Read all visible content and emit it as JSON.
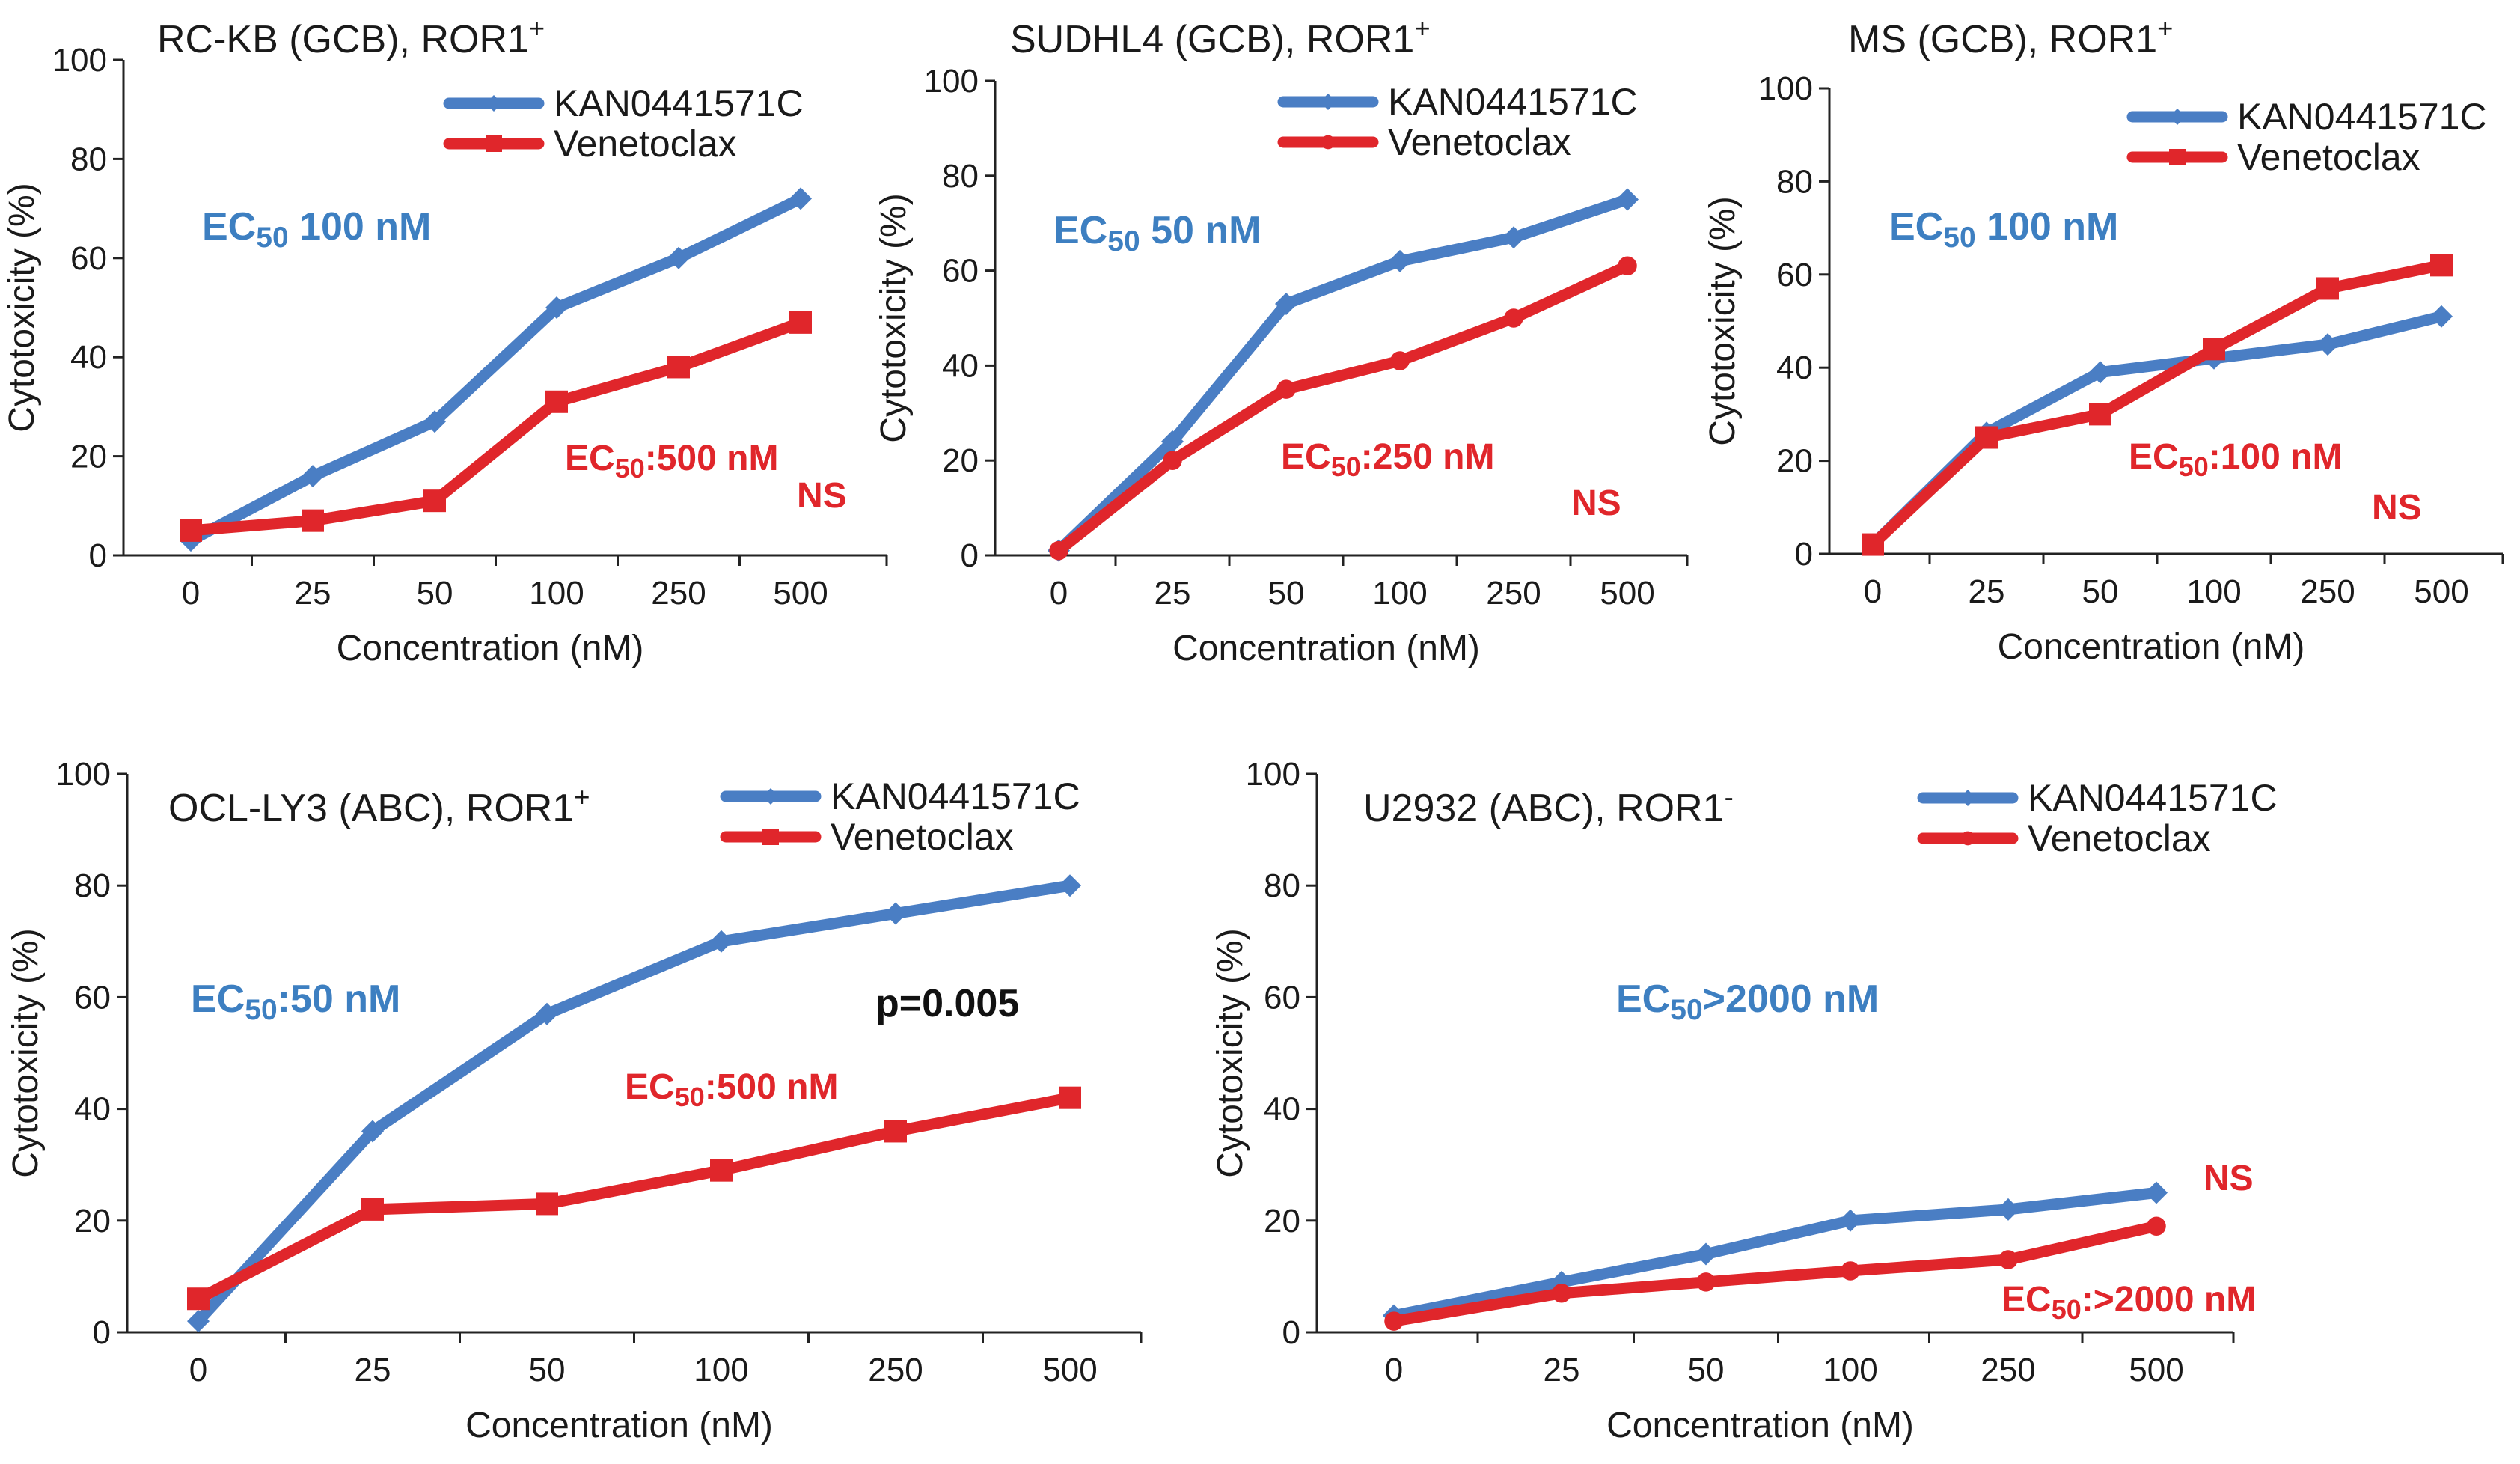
{
  "colors": {
    "blue": "#4a7ec4",
    "red": "#e0262b",
    "axis": "#222222"
  },
  "chart_data": [
    {
      "type": "line",
      "title": "RC-KB (GCB), ROR1",
      "title_sup": "+",
      "xlabel": "Concentration (nM)",
      "ylabel": "Cytotoxicity (%)",
      "categories": [
        "0",
        "25",
        "50",
        "100",
        "250",
        "500"
      ],
      "ylim": [
        0,
        100
      ],
      "yticks": [
        "0",
        "20",
        "40",
        "60",
        "80",
        "100"
      ],
      "series": [
        {
          "name": "KAN0441571C",
          "color": "#4a7ec4",
          "marker": "diamond",
          "values": [
            3,
            16,
            27,
            50,
            60,
            72
          ]
        },
        {
          "name": "Venetoclax",
          "color": "#e0262b",
          "marker": "square",
          "values": [
            5,
            7,
            11,
            31,
            38,
            47
          ]
        }
      ],
      "ec50_blue": {
        "pre": "EC",
        "sub": "50",
        "post": " 100 nM"
      },
      "ec50_red": {
        "pre": "EC",
        "sub": "50",
        "post": ":500 nM"
      },
      "significance": "NS"
    },
    {
      "type": "line",
      "title": "SUDHL4 (GCB), ROR1",
      "title_sup": "+",
      "xlabel": "Concentration (nM)",
      "ylabel": "Cytotoxicity (%)",
      "categories": [
        "0",
        "25",
        "50",
        "100",
        "250",
        "500"
      ],
      "ylim": [
        0,
        100
      ],
      "yticks": [
        "0",
        "20",
        "40",
        "60",
        "80",
        "100"
      ],
      "series": [
        {
          "name": "KAN0441571C",
          "color": "#4a7ec4",
          "marker": "diamond",
          "values": [
            1,
            24,
            53,
            62,
            67,
            75
          ]
        },
        {
          "name": "Venetoclax",
          "color": "#e0262b",
          "marker": "circle",
          "values": [
            1,
            20,
            35,
            41,
            50,
            61
          ]
        }
      ],
      "ec50_blue": {
        "pre": "EC",
        "sub": "50",
        "post": " 50 nM"
      },
      "ec50_red": {
        "pre": "EC",
        "sub": "50",
        "post": ":250 nM"
      },
      "significance": "NS"
    },
    {
      "type": "line",
      "title": "MS (GCB), ROR1",
      "title_sup": "+",
      "xlabel": "Concentration (nM)",
      "ylabel": "Cytotoxicity (%)",
      "categories": [
        "0",
        "25",
        "50",
        "100",
        "250",
        "500"
      ],
      "ylim": [
        0,
        100
      ],
      "yticks": [
        "0",
        "20",
        "40",
        "60",
        "80",
        "100"
      ],
      "series": [
        {
          "name": "KAN0441571C",
          "color": "#4a7ec4",
          "marker": "diamond",
          "values": [
            2,
            26,
            39,
            42,
            45,
            51
          ]
        },
        {
          "name": "Venetoclax",
          "color": "#e0262b",
          "marker": "square",
          "values": [
            2,
            25,
            30,
            44,
            57,
            62
          ]
        }
      ],
      "ec50_blue": {
        "pre": "EC",
        "sub": "50",
        "post": " 100 nM"
      },
      "ec50_red": {
        "pre": "EC",
        "sub": "50",
        "post": ":100 nM"
      },
      "significance": "NS"
    },
    {
      "type": "line",
      "title": "OCL-LY3 (ABC), ROR1",
      "title_sup": "+",
      "xlabel": "Concentration (nM)",
      "ylabel": "Cytotoxicity (%)",
      "categories": [
        "0",
        "25",
        "50",
        "100",
        "250",
        "500"
      ],
      "ylim": [
        0,
        100
      ],
      "yticks": [
        "0",
        "20",
        "40",
        "60",
        "80",
        "100"
      ],
      "series": [
        {
          "name": "KAN0441571C",
          "color": "#4a7ec4",
          "marker": "diamond",
          "values": [
            2,
            36,
            57,
            70,
            75,
            80
          ]
        },
        {
          "name": "Venetoclax",
          "color": "#e0262b",
          "marker": "square",
          "values": [
            6,
            22,
            23,
            29,
            36,
            42
          ]
        }
      ],
      "ec50_blue": {
        "pre": "EC",
        "sub": "50",
        "post": ":50 nM"
      },
      "ec50_red": {
        "pre": "EC",
        "sub": "50",
        "post": ":500 nM"
      },
      "significance": "p=0.005"
    },
    {
      "type": "line",
      "title": "U2932 (ABC), ROR1",
      "title_sup": "-",
      "xlabel": "Concentration (nM)",
      "ylabel": "Cytotoxicity (%)",
      "categories": [
        "0",
        "25",
        "50",
        "100",
        "250",
        "500"
      ],
      "ylim": [
        0,
        100
      ],
      "yticks": [
        "0",
        "20",
        "40",
        "60",
        "80",
        "100"
      ],
      "series": [
        {
          "name": "KAN0441571C",
          "color": "#4a7ec4",
          "marker": "diamond",
          "values": [
            3,
            9,
            14,
            20,
            22,
            25
          ]
        },
        {
          "name": "Venetoclax",
          "color": "#e0262b",
          "marker": "circle",
          "values": [
            2,
            7,
            9,
            11,
            13,
            19
          ]
        }
      ],
      "ec50_blue": {
        "pre": "EC",
        "sub": "50",
        "post": ">2000 nM"
      },
      "ec50_red": {
        "pre": "EC",
        "sub": "50",
        "post": ":>2000 nM"
      },
      "significance": "NS"
    }
  ]
}
